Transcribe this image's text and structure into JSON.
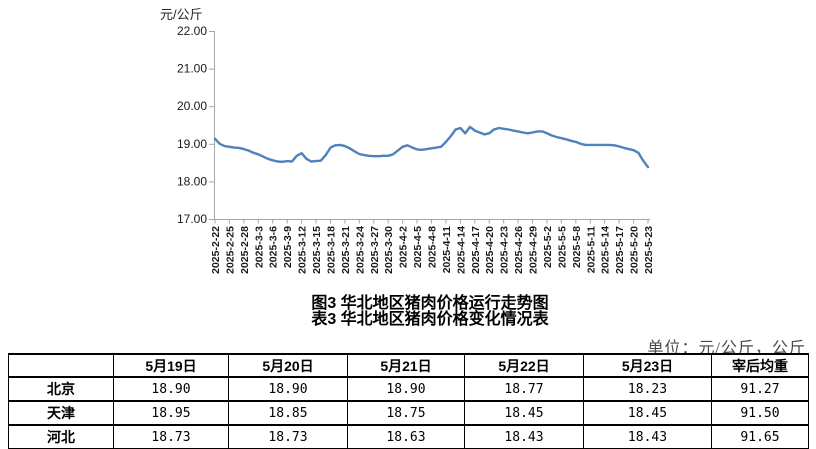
{
  "chart_data": {
    "type": "line",
    "title": "图3 华北地区猪肉价格运行走势图",
    "unit_label": "元/公斤",
    "ylim": [
      17.0,
      22.0
    ],
    "yticks": [
      17,
      18,
      19,
      20,
      21,
      22
    ],
    "grid": false,
    "legend": "none",
    "categories": [
      "2025-2-22",
      "2025-2-25",
      "2025-2-28",
      "2025-3-3",
      "2025-3-6",
      "2025-3-9",
      "2025-3-12",
      "2025-3-15",
      "2025-3-18",
      "2025-3-21",
      "2025-3-24",
      "2025-3-27",
      "2025-3-30",
      "2025-4-2",
      "2025-4-5",
      "2025-4-8",
      "2025-4-11",
      "2025-4-14",
      "2025-4-17",
      "2025-4-20",
      "2025-4-23",
      "2025-4-26",
      "2025-4-29",
      "2025-5-2",
      "2025-5-5",
      "2025-5-8",
      "2025-5-11",
      "2025-5-14",
      "2025-5-17",
      "2025-5-20",
      "2025-5-23"
    ],
    "series": [
      {
        "color": "#4f81bd",
        "start_date": "2025-2-22",
        "interval_days": 1,
        "values": [
          19.13,
          19.0,
          18.94,
          18.92,
          18.9,
          18.89,
          18.86,
          18.82,
          18.76,
          18.72,
          18.66,
          18.6,
          18.56,
          18.53,
          18.52,
          18.54,
          18.53,
          18.68,
          18.75,
          18.6,
          18.53,
          18.54,
          18.55,
          18.7,
          18.9,
          18.96,
          18.97,
          18.94,
          18.88,
          18.8,
          18.73,
          18.7,
          18.68,
          18.67,
          18.67,
          18.68,
          18.68,
          18.72,
          18.82,
          18.92,
          18.96,
          18.9,
          18.85,
          18.84,
          18.86,
          18.88,
          18.9,
          18.92,
          19.05,
          19.2,
          19.38,
          19.42,
          19.28,
          19.45,
          19.35,
          19.3,
          19.25,
          19.28,
          19.38,
          19.42,
          19.4,
          19.38,
          19.35,
          19.33,
          19.3,
          19.28,
          19.3,
          19.33,
          19.33,
          19.28,
          19.22,
          19.18,
          19.15,
          19.12,
          19.08,
          19.05,
          19.0,
          18.97,
          18.97,
          18.97,
          18.97,
          18.97,
          18.97,
          18.96,
          18.93,
          18.89,
          18.86,
          18.83,
          18.76,
          18.55,
          18.38
        ]
      }
    ]
  },
  "titles": {
    "figure": "图3 华北地区猪肉价格运行走势图",
    "table": "表3 华北地区猪肉价格变化情况表"
  },
  "unit_note": "单位：元/公斤，公斤",
  "price_table": {
    "columns": [
      "",
      "5月19日",
      "5月20日",
      "5月21日",
      "5月22日",
      "5月23日",
      "宰后均重"
    ],
    "rows": [
      {
        "region": "北京",
        "values": [
          "18.90",
          "18.90",
          "18.90",
          "18.77",
          "18.23",
          "91.27"
        ]
      },
      {
        "region": "天津",
        "values": [
          "18.95",
          "18.85",
          "18.75",
          "18.45",
          "18.45",
          "91.50"
        ]
      },
      {
        "region": "河北",
        "values": [
          "18.73",
          "18.73",
          "18.63",
          "18.43",
          "18.43",
          "91.65"
        ]
      }
    ]
  },
  "colors": {
    "line": "#4f81bd",
    "axis": "#a6a6a6",
    "tick_text": "#1a1a1a",
    "unit_note_text": "#4a4a4a",
    "table_border": "#000000"
  }
}
